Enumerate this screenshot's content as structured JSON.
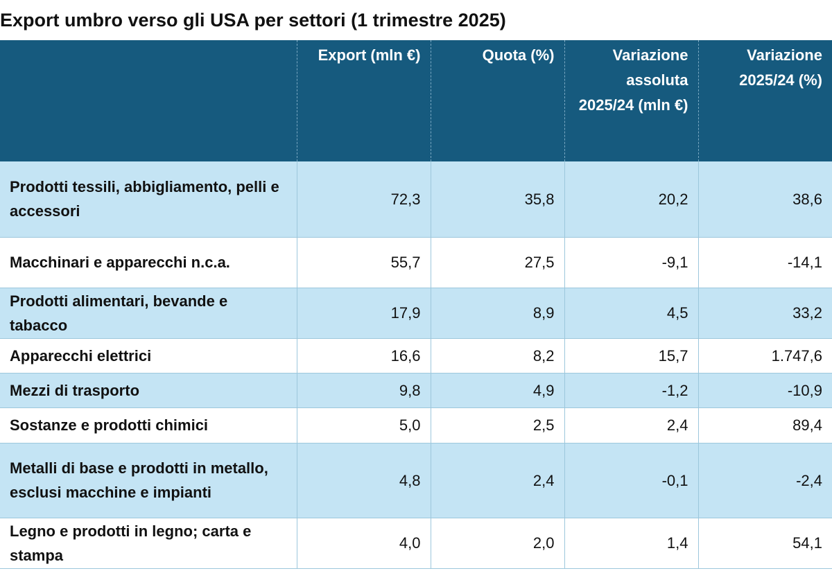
{
  "title": "Export umbro verso gli USA per settori (1 trimestre 2025)",
  "header": {
    "col0": "",
    "col1": "Export (mln €)",
    "col2": "Quota (%)",
    "col3": "Variazione assoluta 2025/24 (mln €)",
    "col4": "Variazione 2025/24 (%)"
  },
  "rows": [
    {
      "sector": "Prodotti tessili, abbigliamento, pelli e accessori",
      "export": "72,3",
      "quota": "35,8",
      "var_abs": "20,2",
      "var_pct": "38,6"
    },
    {
      "sector": "Macchinari e apparecchi n.c.a.",
      "export": "55,7",
      "quota": "27,5",
      "var_abs": "-9,1",
      "var_pct": "-14,1"
    },
    {
      "sector": "Prodotti alimentari, bevande e tabacco",
      "export": "17,9",
      "quota": "8,9",
      "var_abs": "4,5",
      "var_pct": "33,2"
    },
    {
      "sector": "Apparecchi elettrici",
      "export": "16,6",
      "quota": "8,2",
      "var_abs": "15,7",
      "var_pct": "1.747,6"
    },
    {
      "sector": "Mezzi di trasporto",
      "export": "9,8",
      "quota": "4,9",
      "var_abs": "-1,2",
      "var_pct": "-10,9"
    },
    {
      "sector": "Sostanze e prodotti chimici",
      "export": "5,0",
      "quota": "2,5",
      "var_abs": "2,4",
      "var_pct": "89,4"
    },
    {
      "sector": "Metalli di base e prodotti in metallo, esclusi macchine e impianti",
      "export": "4,8",
      "quota": "2,4",
      "var_abs": "-0,1",
      "var_pct": "-2,4"
    },
    {
      "sector": "Legno e prodotti in legno; carta e stampa",
      "export": "4,0",
      "quota": "2,0",
      "var_abs": "1,4",
      "var_pct": "54,1"
    }
  ],
  "colors": {
    "header_bg": "#165a7e",
    "row_alt_bg": "#c4e4f4",
    "row_plain_bg": "#ffffff"
  }
}
